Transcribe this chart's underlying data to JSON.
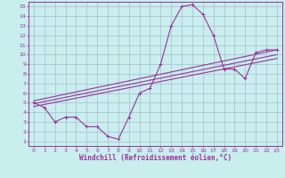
{
  "background_color": "#c8eeee",
  "grid_color": "#aabbcc",
  "line_color": "#993399",
  "spine_color": "#993399",
  "xlim_min": -0.5,
  "xlim_max": 23.5,
  "ylim_min": 0.5,
  "ylim_max": 15.5,
  "xticks": [
    0,
    1,
    2,
    3,
    4,
    5,
    6,
    7,
    8,
    9,
    10,
    11,
    12,
    13,
    14,
    15,
    16,
    17,
    18,
    19,
    20,
    21,
    22,
    23
  ],
  "yticks": [
    1,
    2,
    3,
    4,
    5,
    6,
    7,
    8,
    9,
    10,
    11,
    12,
    13,
    14,
    15
  ],
  "xlabel": "Windchill (Refroidissement éolien,°C)",
  "main_x": [
    0,
    1,
    2,
    3,
    4,
    5,
    6,
    7,
    8,
    9,
    10,
    11,
    12,
    13,
    14,
    15,
    16,
    17,
    18,
    19,
    20,
    21,
    22,
    23
  ],
  "main_y": [
    5.0,
    4.5,
    3.0,
    3.5,
    3.5,
    2.5,
    2.5,
    1.5,
    1.2,
    3.5,
    6.0,
    6.5,
    9.0,
    13.0,
    15.0,
    15.2,
    14.2,
    12.0,
    8.5,
    8.5,
    7.5,
    10.2,
    10.5,
    10.5
  ],
  "line2_x": [
    0,
    23
  ],
  "line2_y": [
    5.2,
    10.5
  ],
  "line3_x": [
    0,
    23
  ],
  "line3_y": [
    4.9,
    10.0
  ],
  "line4_x": [
    0,
    23
  ],
  "line4_y": [
    4.6,
    9.6
  ],
  "tick_fontsize": 4.5,
  "xlabel_fontsize": 5.5,
  "linewidth": 0.8,
  "marker_size": 3.0,
  "marker_ew": 0.7
}
